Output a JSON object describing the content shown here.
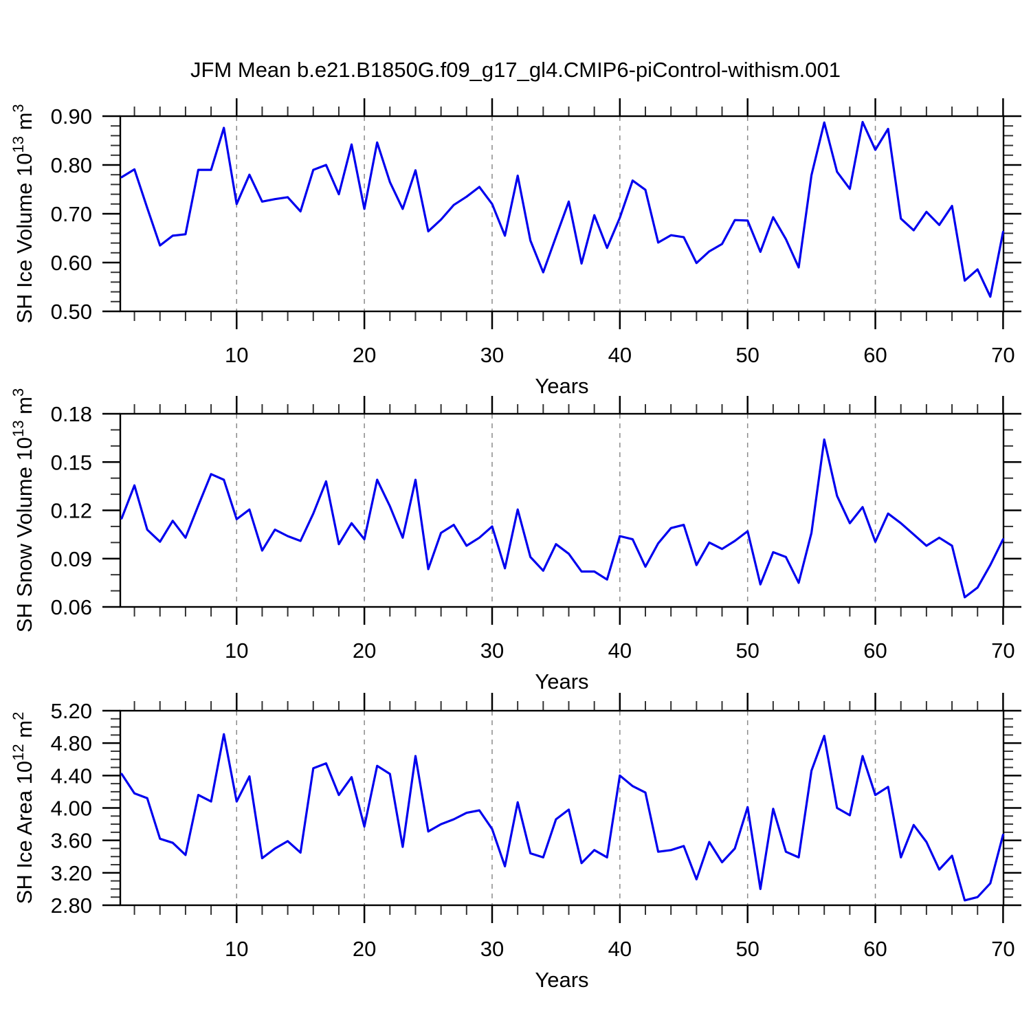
{
  "title": "JFM Mean b.e21.B1850G.f09_g17_gl4.CMIP6-piControl-withism.001",
  "line_color": "#0000ee",
  "grid_color": "#8a8a8a",
  "axis_color": "#000000",
  "years": [
    1,
    2,
    3,
    4,
    5,
    6,
    7,
    8,
    9,
    10,
    11,
    12,
    13,
    14,
    15,
    16,
    17,
    18,
    19,
    20,
    21,
    22,
    23,
    24,
    25,
    26,
    27,
    28,
    29,
    30,
    31,
    32,
    33,
    34,
    35,
    36,
    37,
    38,
    39,
    40,
    41,
    42,
    43,
    44,
    45,
    46,
    47,
    48,
    49,
    50,
    51,
    52,
    53,
    54,
    55,
    56,
    57,
    58,
    59,
    60,
    61,
    62,
    63,
    64,
    65,
    66,
    67,
    68,
    69,
    70
  ],
  "chart_data": [
    {
      "type": "line",
      "id": "ice-volume",
      "ylabel": "SH Ice Volume 10^13 m^3",
      "xlabel": "Years",
      "legend": "none",
      "grid": "vertical-dashed",
      "x_axis": {
        "min": 1,
        "max": 70,
        "major_ticks": [
          10,
          20,
          30,
          40,
          50,
          60,
          70
        ],
        "tick_labels": [
          "10",
          "20",
          "30",
          "40",
          "50",
          "60",
          "70"
        ],
        "minor_step": 2
      },
      "y_axis": {
        "min": 0.5,
        "max": 0.9,
        "major_ticks": [
          0.5,
          0.6,
          0.7,
          0.8,
          0.9
        ],
        "tick_labels": [
          "0.50",
          "0.60",
          "0.70",
          "0.80",
          "0.90"
        ],
        "minor_step": 0.02
      },
      "values": [
        0.775,
        0.791,
        0.712,
        0.635,
        0.655,
        0.658,
        0.79,
        0.79,
        0.876,
        0.72,
        0.78,
        0.725,
        0.73,
        0.734,
        0.705,
        0.79,
        0.8,
        0.74,
        0.842,
        0.71,
        0.846,
        0.765,
        0.71,
        0.789,
        0.664,
        0.688,
        0.718,
        0.735,
        0.755,
        0.72,
        0.655,
        0.778,
        0.645,
        0.58,
        0.653,
        0.725,
        0.598,
        0.697,
        0.63,
        0.692,
        0.768,
        0.749,
        0.641,
        0.656,
        0.652,
        0.599,
        0.623,
        0.638,
        0.687,
        0.686,
        0.622,
        0.693,
        0.648,
        0.59,
        0.779,
        0.887,
        0.786,
        0.751,
        0.888,
        0.831,
        0.874,
        0.69,
        0.666,
        0.704,
        0.677,
        0.716,
        0.563,
        0.586,
        0.53,
        0.663
      ]
    },
    {
      "type": "line",
      "id": "snow-volume",
      "ylabel": "SH Snow Volume 10^13 m^3",
      "xlabel": "Years",
      "legend": "none",
      "grid": "vertical-dashed",
      "x_axis": {
        "min": 1,
        "max": 70,
        "major_ticks": [
          10,
          20,
          30,
          40,
          50,
          60,
          70
        ],
        "tick_labels": [
          "10",
          "20",
          "30",
          "40",
          "50",
          "60",
          "70"
        ],
        "minor_step": 2
      },
      "y_axis": {
        "min": 0.06,
        "max": 0.18,
        "major_ticks": [
          0.06,
          0.09,
          0.12,
          0.15,
          0.18
        ],
        "tick_labels": [
          "0.06",
          "0.09",
          "0.12",
          "0.15",
          "0.18"
        ],
        "minor_step": 0.01
      },
      "values": [
        0.115,
        0.1355,
        0.108,
        0.1005,
        0.1135,
        0.103,
        0.123,
        0.1425,
        0.139,
        0.1145,
        0.1205,
        0.095,
        0.108,
        0.104,
        0.101,
        0.118,
        0.138,
        0.099,
        0.112,
        0.102,
        0.139,
        0.1225,
        0.103,
        0.139,
        0.0835,
        0.106,
        0.111,
        0.098,
        0.103,
        0.11,
        0.084,
        0.1205,
        0.091,
        0.0825,
        0.099,
        0.093,
        0.082,
        0.082,
        0.077,
        0.104,
        0.102,
        0.085,
        0.0995,
        0.109,
        0.111,
        0.086,
        0.1,
        0.096,
        0.101,
        0.107,
        0.074,
        0.094,
        0.091,
        0.075,
        0.106,
        0.164,
        0.129,
        0.112,
        0.122,
        0.1005,
        0.118,
        0.112,
        0.105,
        0.098,
        0.103,
        0.098,
        0.066,
        0.072,
        0.086,
        0.102
      ]
    },
    {
      "type": "line",
      "id": "ice-area",
      "ylabel": "SH Ice Area 10^12 m^2",
      "xlabel": "Years",
      "legend": "none",
      "grid": "vertical-dashed",
      "x_axis": {
        "min": 1,
        "max": 70,
        "major_ticks": [
          10,
          20,
          30,
          40,
          50,
          60,
          70
        ],
        "tick_labels": [
          "10",
          "20",
          "30",
          "40",
          "50",
          "60",
          "70"
        ],
        "minor_step": 2
      },
      "y_axis": {
        "min": 2.8,
        "max": 5.2,
        "major_ticks": [
          2.8,
          3.2,
          3.6,
          4.0,
          4.4,
          4.8,
          5.2
        ],
        "tick_labels": [
          "2.80",
          "3.20",
          "3.60",
          "4.00",
          "4.40",
          "4.80",
          "5.20"
        ],
        "minor_step": 0.1
      },
      "values": [
        4.42,
        4.18,
        4.12,
        3.62,
        3.57,
        3.42,
        4.16,
        4.08,
        4.91,
        4.08,
        4.39,
        3.38,
        3.5,
        3.59,
        3.45,
        4.49,
        4.55,
        4.16,
        4.38,
        3.77,
        4.52,
        4.42,
        3.52,
        4.64,
        3.71,
        3.8,
        3.86,
        3.94,
        3.97,
        3.74,
        3.28,
        4.07,
        3.44,
        3.39,
        3.86,
        3.98,
        3.32,
        3.48,
        3.39,
        4.4,
        4.27,
        4.19,
        3.46,
        3.48,
        3.53,
        3.12,
        3.58,
        3.33,
        3.5,
        4.01,
        3.0,
        3.99,
        3.46,
        3.39,
        4.46,
        4.89,
        4.0,
        3.91,
        4.64,
        4.16,
        4.26,
        3.39,
        3.79,
        3.58,
        3.24,
        3.41,
        2.86,
        2.9,
        3.07,
        3.67
      ]
    }
  ]
}
